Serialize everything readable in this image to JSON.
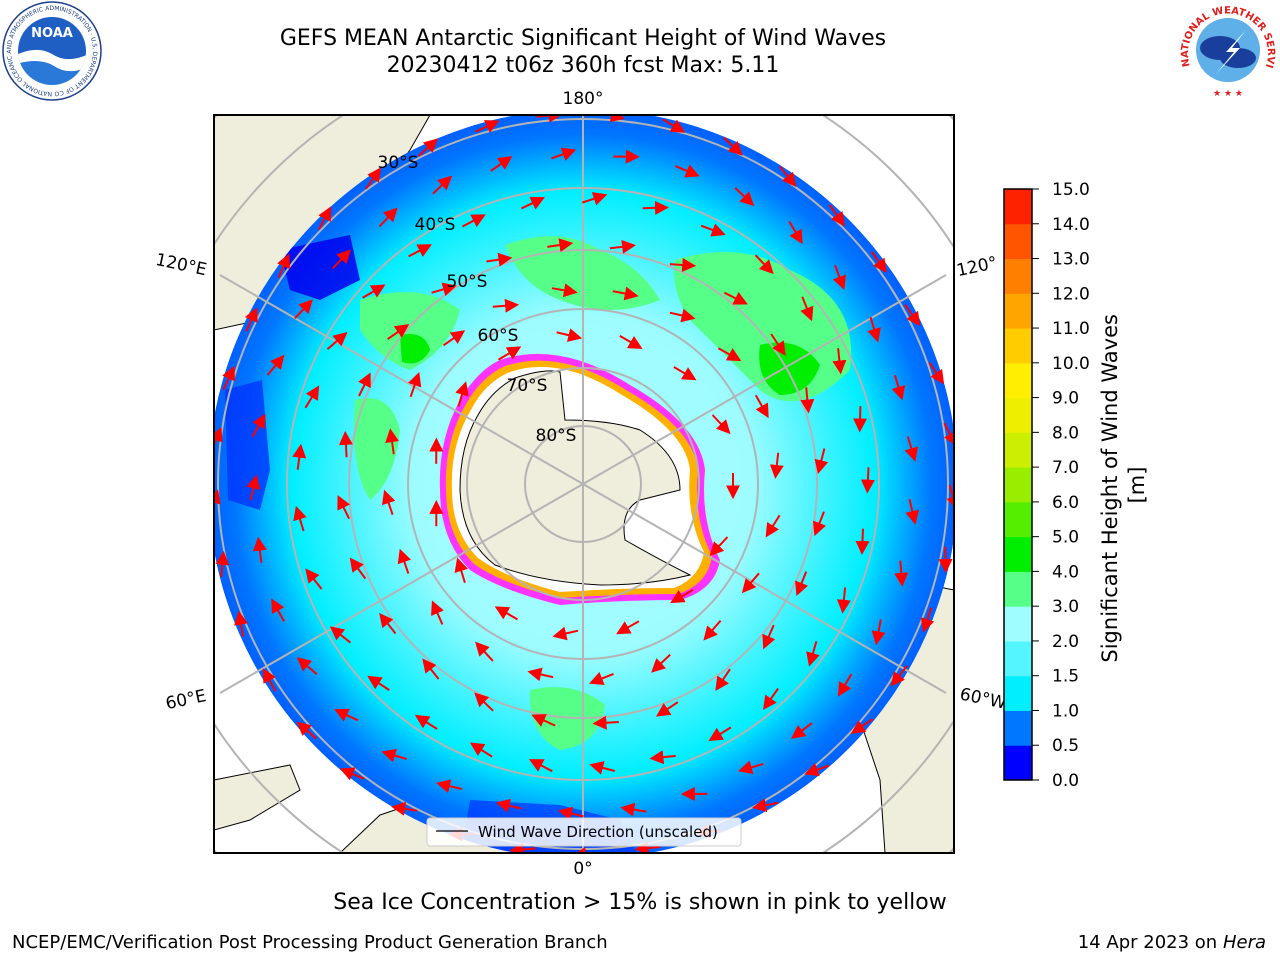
{
  "title": {
    "line1": "GEFS MEAN Antarctic Significant Height of Wind Waves",
    "line2": "20230412 t06z 360h fcst   Max: 5.11"
  },
  "logos": {
    "left": "NOAA",
    "left_ring": "NATIONAL OCEANIC AND ATMOSPHERIC ADMINISTRATION · U.S. DEPARTMENT OF COMMERCE",
    "right_ring": "NATIONAL WEATHER SERVICE"
  },
  "map": {
    "projection": "south-polar-stereographic",
    "longitude_labels": [
      "180°",
      "120°E",
      "120°",
      "60°E",
      "60°W",
      "0°"
    ],
    "latitude_labels": [
      "30°S",
      "40°S",
      "50°S",
      "60°S",
      "70°S",
      "80°S"
    ],
    "legend_label": "Wind Wave Direction (unscaled)",
    "colors": {
      "land": "#efeddc",
      "ice_shelf": "#ffffff",
      "sea_ice_edge": [
        "#ff33ff",
        "#ffb000",
        "#ffff00"
      ],
      "arrow": "#ff0000",
      "grid": "#b4b4b4"
    }
  },
  "colorbar": {
    "label": "Significant Height of Wind Waves [m]",
    "ticks": [
      "0.0",
      "0.5",
      "1.0",
      "1.5",
      "2.0",
      "3.0",
      "4.0",
      "5.0",
      "6.0",
      "7.0",
      "8.0",
      "9.0",
      "10.0",
      "11.0",
      "12.0",
      "13.0",
      "14.0",
      "15.0"
    ],
    "colors": [
      "#0000ff",
      "#0077ff",
      "#00eeff",
      "#55f5ff",
      "#9ffcff",
      "#55ff88",
      "#00ee00",
      "#55ee00",
      "#99ee00",
      "#ccee00",
      "#eeee00",
      "#ffee00",
      "#ffcc00",
      "#ffa500",
      "#ff8000",
      "#ff5500",
      "#ff2200"
    ]
  },
  "footer": {
    "note": "Sea Ice Concentration > 15% is shown in pink to yellow",
    "credit": "NCEP/EMC/Verification Post Processing Product Generation Branch",
    "date": "14 Apr 2023 on ",
    "host": "Hera"
  }
}
